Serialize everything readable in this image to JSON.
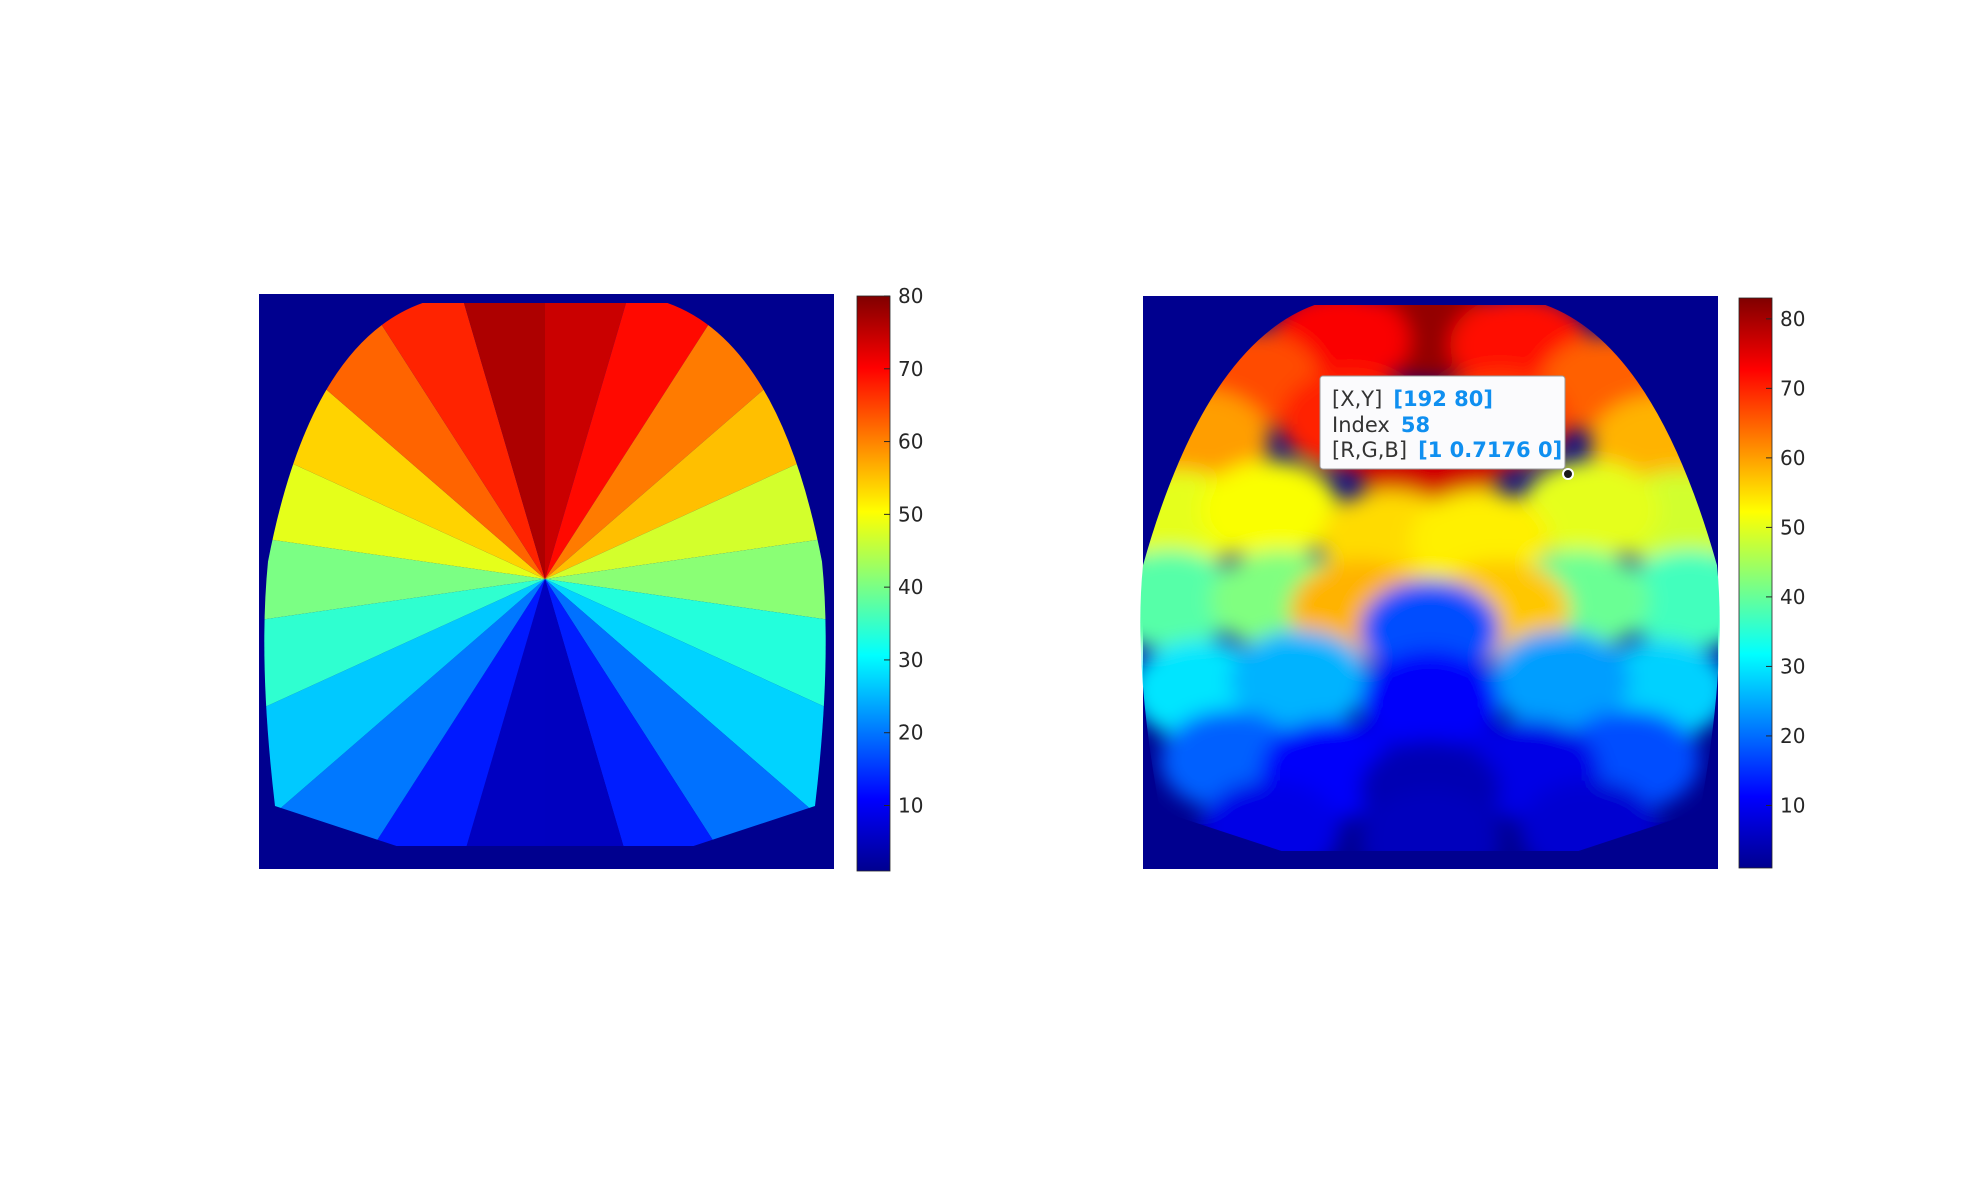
{
  "chart_data": [
    {
      "type": "heatmap",
      "title": "",
      "xlabel": "",
      "ylabel": "",
      "colormap": "jet",
      "background_value": 1,
      "pattern": "radial sectors emanating from center, values increasing counter-clockwise from bottom (~1) through left (~40-50) to top (~80)",
      "colorbar": {
        "ticks": [
          10,
          20,
          30,
          40,
          50,
          60,
          70,
          80
        ],
        "range": [
          1,
          80
        ]
      }
    },
    {
      "type": "heatmap",
      "title": "",
      "xlabel": "",
      "ylabel": "",
      "colormap": "jet",
      "background_value": 1,
      "pattern": "noisy parcellated regions: high values (~70-83) at top, ~40-60 at middle sides, low values (~1-25) at bottom",
      "colorbar": {
        "ticks": [
          10,
          20,
          30,
          40,
          50,
          60,
          70,
          80
        ],
        "range": [
          1,
          83
        ]
      },
      "datatip": {
        "x": 192,
        "y": 80,
        "index": 58,
        "rgb": "[1 0.7176 0]",
        "labels": {
          "xy": "[X,Y]",
          "xy_value": "[192 80]",
          "index": "Index",
          "index_value": "58",
          "rgb": "[R,G,B]",
          "rgb_value": "[1 0.7176 0]"
        }
      }
    }
  ],
  "colors": {
    "background": "#00008f",
    "datatip_value": "#0f8ff0",
    "datatip_text": "#333333",
    "tick_text": "#262626"
  }
}
